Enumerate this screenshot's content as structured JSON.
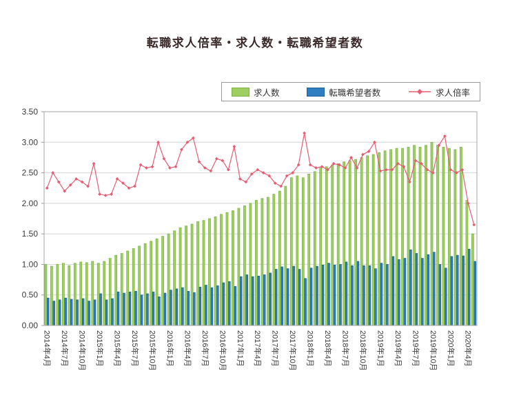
{
  "title": "転職求人倍率・求人数・転職希望者数",
  "y_axis": {
    "tick_labels": [
      "0.00",
      "0.50",
      "1.00",
      "1.50",
      "2.00",
      "2.50",
      "3.00",
      "3.50"
    ]
  },
  "chart_data": {
    "type": "bar",
    "subtype": "grouped-bars-with-line",
    "title": "転職求人倍率・求人数・転職希望者数",
    "xlabel": "",
    "ylabel": "",
    "ylim": [
      0,
      3.5
    ],
    "ytick_step": 0.5,
    "grid": true,
    "legend_position": "top",
    "x_tick_every": 3,
    "categories": [
      "2014年4月",
      "2014年5月",
      "2014年6月",
      "2014年7月",
      "2014年8月",
      "2014年9月",
      "2014年10月",
      "2014年11月",
      "2014年12月",
      "2015年1月",
      "2015年2月",
      "2015年3月",
      "2015年4月",
      "2015年5月",
      "2015年6月",
      "2015年7月",
      "2015年8月",
      "2015年9月",
      "2015年10月",
      "2015年11月",
      "2015年12月",
      "2016年1月",
      "2016年2月",
      "2016年3月",
      "2016年4月",
      "2016年5月",
      "2016年6月",
      "2016年7月",
      "2016年8月",
      "2016年9月",
      "2016年10月",
      "2016年11月",
      "2016年12月",
      "2017年1月",
      "2017年2月",
      "2017年3月",
      "2017年4月",
      "2017年5月",
      "2017年6月",
      "2017年7月",
      "2017年8月",
      "2017年9月",
      "2017年10月",
      "2017年11月",
      "2017年12月",
      "2018年1月",
      "2018年2月",
      "2018年3月",
      "2018年4月",
      "2018年5月",
      "2018年6月",
      "2018年7月",
      "2018年8月",
      "2018年9月",
      "2018年10月",
      "2018年11月",
      "2018年12月",
      "2019年1月",
      "2019年2月",
      "2019年3月",
      "2019年4月",
      "2019年5月",
      "2019年6月",
      "2019年7月",
      "2019年8月",
      "2019年9月",
      "2019年10月",
      "2019年11月",
      "2019年12月",
      "2020年1月",
      "2020年2月",
      "2020年3月",
      "2020年4月",
      "2020年5月"
    ],
    "series": [
      {
        "name": "求人数",
        "type": "bar",
        "color": "#9fce62",
        "stroke": "#79b43f",
        "values": [
          1.0,
          0.97,
          1.0,
          1.02,
          0.98,
          1.02,
          1.04,
          1.03,
          1.05,
          1.02,
          1.05,
          1.1,
          1.15,
          1.18,
          1.22,
          1.26,
          1.3,
          1.34,
          1.38,
          1.42,
          1.46,
          1.5,
          1.55,
          1.6,
          1.63,
          1.66,
          1.7,
          1.72,
          1.75,
          1.78,
          1.82,
          1.85,
          1.88,
          1.92,
          1.96,
          2.0,
          2.05,
          2.08,
          2.1,
          2.15,
          2.2,
          2.28,
          2.42,
          2.45,
          2.42,
          2.48,
          2.52,
          2.58,
          2.6,
          2.63,
          2.65,
          2.68,
          2.7,
          2.72,
          2.75,
          2.78,
          2.8,
          2.83,
          2.86,
          2.88,
          2.9,
          2.9,
          2.92,
          2.95,
          2.92,
          2.95,
          3.0,
          2.95,
          2.92,
          2.9,
          2.88,
          2.92,
          2.05,
          1.5
        ]
      },
      {
        "name": "転職希望者数",
        "type": "bar",
        "color": "#2d7fc1",
        "stroke": "#1e5f96",
        "values": [
          0.45,
          0.4,
          0.42,
          0.45,
          0.43,
          0.42,
          0.44,
          0.4,
          0.42,
          0.52,
          0.42,
          0.44,
          0.55,
          0.53,
          0.55,
          0.56,
          0.5,
          0.52,
          0.55,
          0.47,
          0.53,
          0.58,
          0.6,
          0.62,
          0.56,
          0.54,
          0.63,
          0.66,
          0.62,
          0.65,
          0.7,
          0.72,
          0.64,
          0.8,
          0.83,
          0.8,
          0.81,
          0.83,
          0.86,
          0.92,
          0.96,
          0.93,
          0.97,
          0.92,
          0.77,
          0.94,
          0.97,
          0.99,
          1.02,
          0.99,
          1.0,
          1.04,
          0.98,
          1.05,
          0.98,
          0.98,
          0.93,
          1.02,
          1.0,
          1.13,
          1.08,
          1.1,
          1.24,
          1.18,
          1.1,
          1.16,
          1.2,
          1.0,
          0.94,
          1.13,
          1.15,
          1.14,
          1.25,
          1.05
        ]
      },
      {
        "name": "求人倍率",
        "type": "line",
        "color": "#e65c72",
        "marker": "diamond",
        "values": [
          2.25,
          2.5,
          2.35,
          2.2,
          2.3,
          2.4,
          2.35,
          2.28,
          2.65,
          2.15,
          2.13,
          2.15,
          2.4,
          2.33,
          2.25,
          2.28,
          2.63,
          2.58,
          2.6,
          3.0,
          2.73,
          2.58,
          2.6,
          2.88,
          3.0,
          3.07,
          2.68,
          2.58,
          2.53,
          2.73,
          2.7,
          2.55,
          2.93,
          2.4,
          2.35,
          2.48,
          2.55,
          2.5,
          2.45,
          2.33,
          2.28,
          2.45,
          2.5,
          2.63,
          3.15,
          2.63,
          2.58,
          2.6,
          2.55,
          2.65,
          2.63,
          2.58,
          2.75,
          2.58,
          2.8,
          2.85,
          3.0,
          2.53,
          2.55,
          2.55,
          2.65,
          2.6,
          2.35,
          2.7,
          2.65,
          2.55,
          2.5,
          2.95,
          3.1,
          2.55,
          2.5,
          2.55,
          2.0,
          1.65
        ]
      }
    ]
  }
}
